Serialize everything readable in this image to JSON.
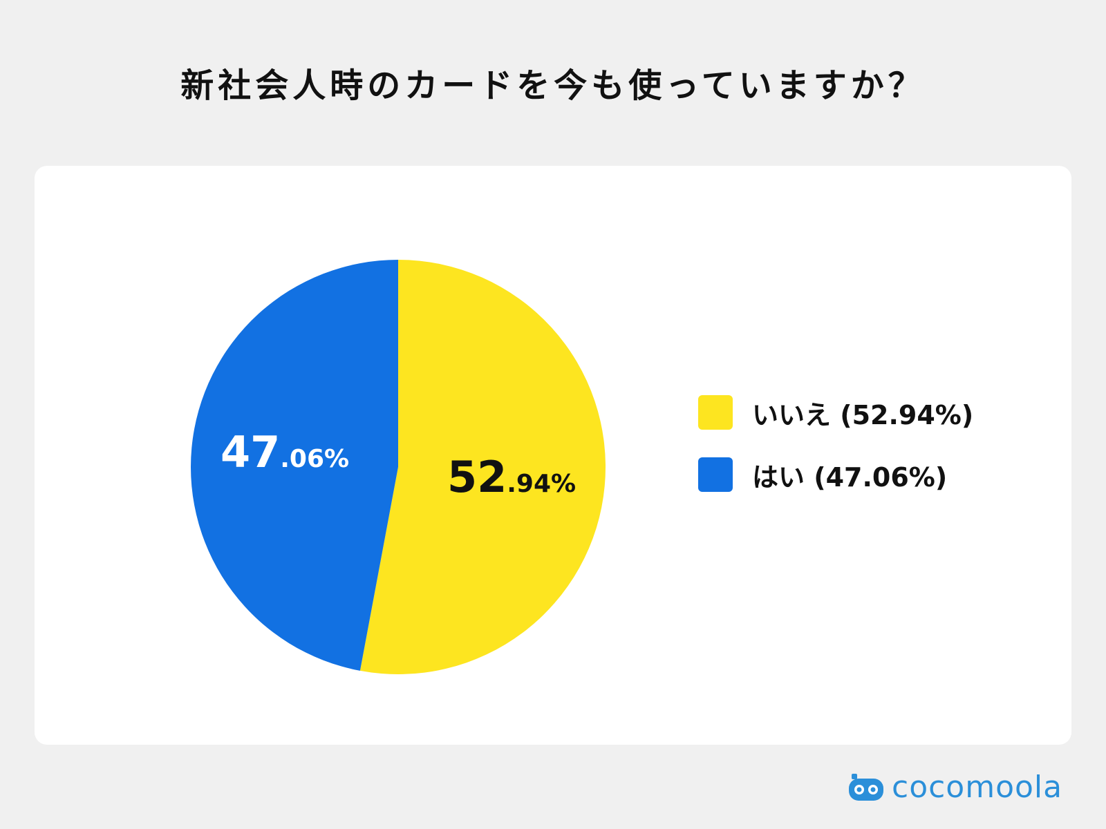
{
  "title": "新社会人時のカードを今も使っていますか？",
  "chart_data": {
    "type": "pie",
    "slices": [
      {
        "name": "いいえ",
        "value": 52.94,
        "color": "#fde520",
        "label_int": "52",
        "label_dec": ".94%",
        "label_color": "#111111"
      },
      {
        "name": "はい",
        "value": 47.06,
        "color": "#1271e2",
        "label_int": "47",
        "label_dec": ".06%",
        "label_color": "#ffffff"
      }
    ],
    "start": "12 o'clock",
    "direction": "clockwise",
    "legend_position": "right"
  },
  "legend": {
    "items": [
      {
        "label": "いいえ (52.94%)",
        "color": "#fde520"
      },
      {
        "label": "はい (47.06%)",
        "color": "#1271e2"
      }
    ]
  },
  "brand": {
    "name": "cocomoola",
    "color": "#2b8fd9",
    "icon": "robot-face-icon"
  }
}
